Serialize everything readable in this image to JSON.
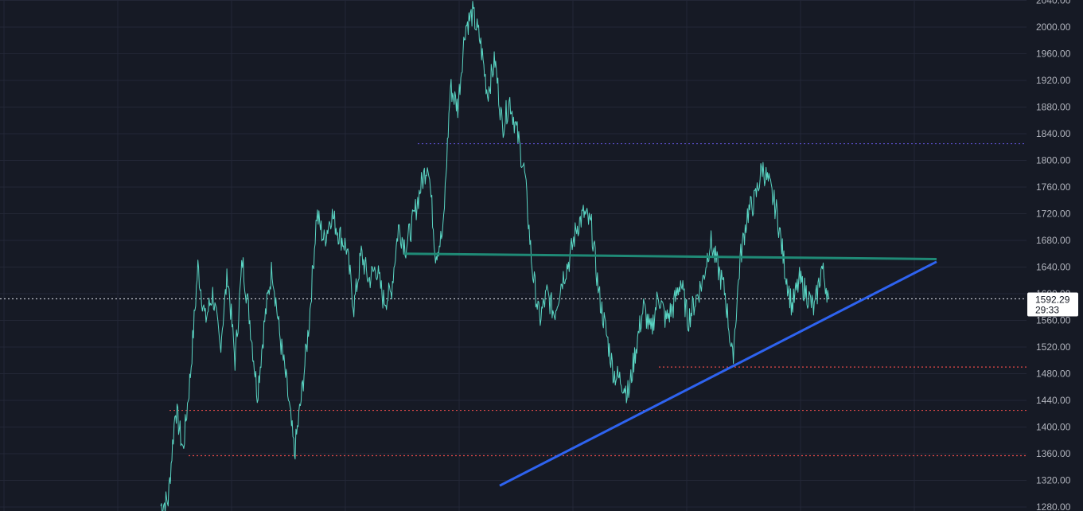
{
  "colors": {
    "background": "#161a25",
    "grid": "#232736",
    "price_line": "#5ad6c4",
    "resistance_dotted": "#5e52d6",
    "support_dotted": "#e04848",
    "horizontal_line": "#1f8a76",
    "trendline": "#2e63f0",
    "current_price_line": "#d1d4dc",
    "axis_text": "#b2b5be"
  },
  "price_axis": {
    "tick_labels": [
      "1280.00",
      "1320.00",
      "1360.00",
      "1400.00",
      "1440.00",
      "1480.00",
      "1520.00",
      "1560.00",
      "1600.00",
      "1640.00",
      "1680.00",
      "1720.00",
      "1760.00",
      "1800.00",
      "1840.00",
      "1880.00",
      "1920.00",
      "1960.00",
      "2000.00",
      "2040.00"
    ]
  },
  "current_price": {
    "value": "1592.29",
    "countdown": "29:33"
  },
  "chart_data": {
    "type": "line",
    "ylim": [
      1280,
      2040
    ],
    "grid": true,
    "series": [
      {
        "values": [
          1282,
          1290,
          1430,
          1365,
          1480,
          1640,
          1560,
          1600,
          1520,
          1630,
          1500,
          1650,
          1560,
          1450,
          1560,
          1640,
          1540,
          1460,
          1360,
          1450,
          1560,
          1720,
          1680,
          1720,
          1690,
          1670,
          1580,
          1660,
          1620,
          1640,
          1590,
          1600,
          1700,
          1670,
          1710,
          1760,
          1800,
          1660,
          1690,
          1910,
          1880,
          2000,
          2020,
          1980,
          1900,
          1950,
          1850,
          1890,
          1840,
          1780,
          1640,
          1560,
          1600,
          1570,
          1620,
          1650,
          1700,
          1720,
          1700,
          1600,
          1540,
          1480,
          1470,
          1450,
          1520,
          1580,
          1540,
          1600,
          1560,
          1580,
          1620,
          1560,
          1590,
          1620,
          1680,
          1640,
          1600,
          1500,
          1650,
          1720,
          1740,
          1790,
          1760,
          1720,
          1640,
          1580,
          1620,
          1600,
          1575,
          1640,
          1592.29
        ]
      }
    ],
    "annotations": {
      "horizontal_levels": [
        {
          "value": 1825,
          "style": "dotted",
          "color": "#5e52d6"
        },
        {
          "value": 1490,
          "style": "dotted",
          "color": "#e04848"
        },
        {
          "value": 1425,
          "style": "dotted",
          "color": "#e04848"
        },
        {
          "value": 1357,
          "style": "dotted",
          "color": "#e04848"
        },
        {
          "value": 1592.29,
          "style": "dotted",
          "color": "#d1d4dc"
        }
      ],
      "horizontal_line": {
        "start_value": 1660,
        "end_value": 1652,
        "color": "#1f8a76"
      },
      "trendline": {
        "start_value": 1312,
        "end_value": 1648,
        "color": "#2e63f0"
      }
    }
  }
}
